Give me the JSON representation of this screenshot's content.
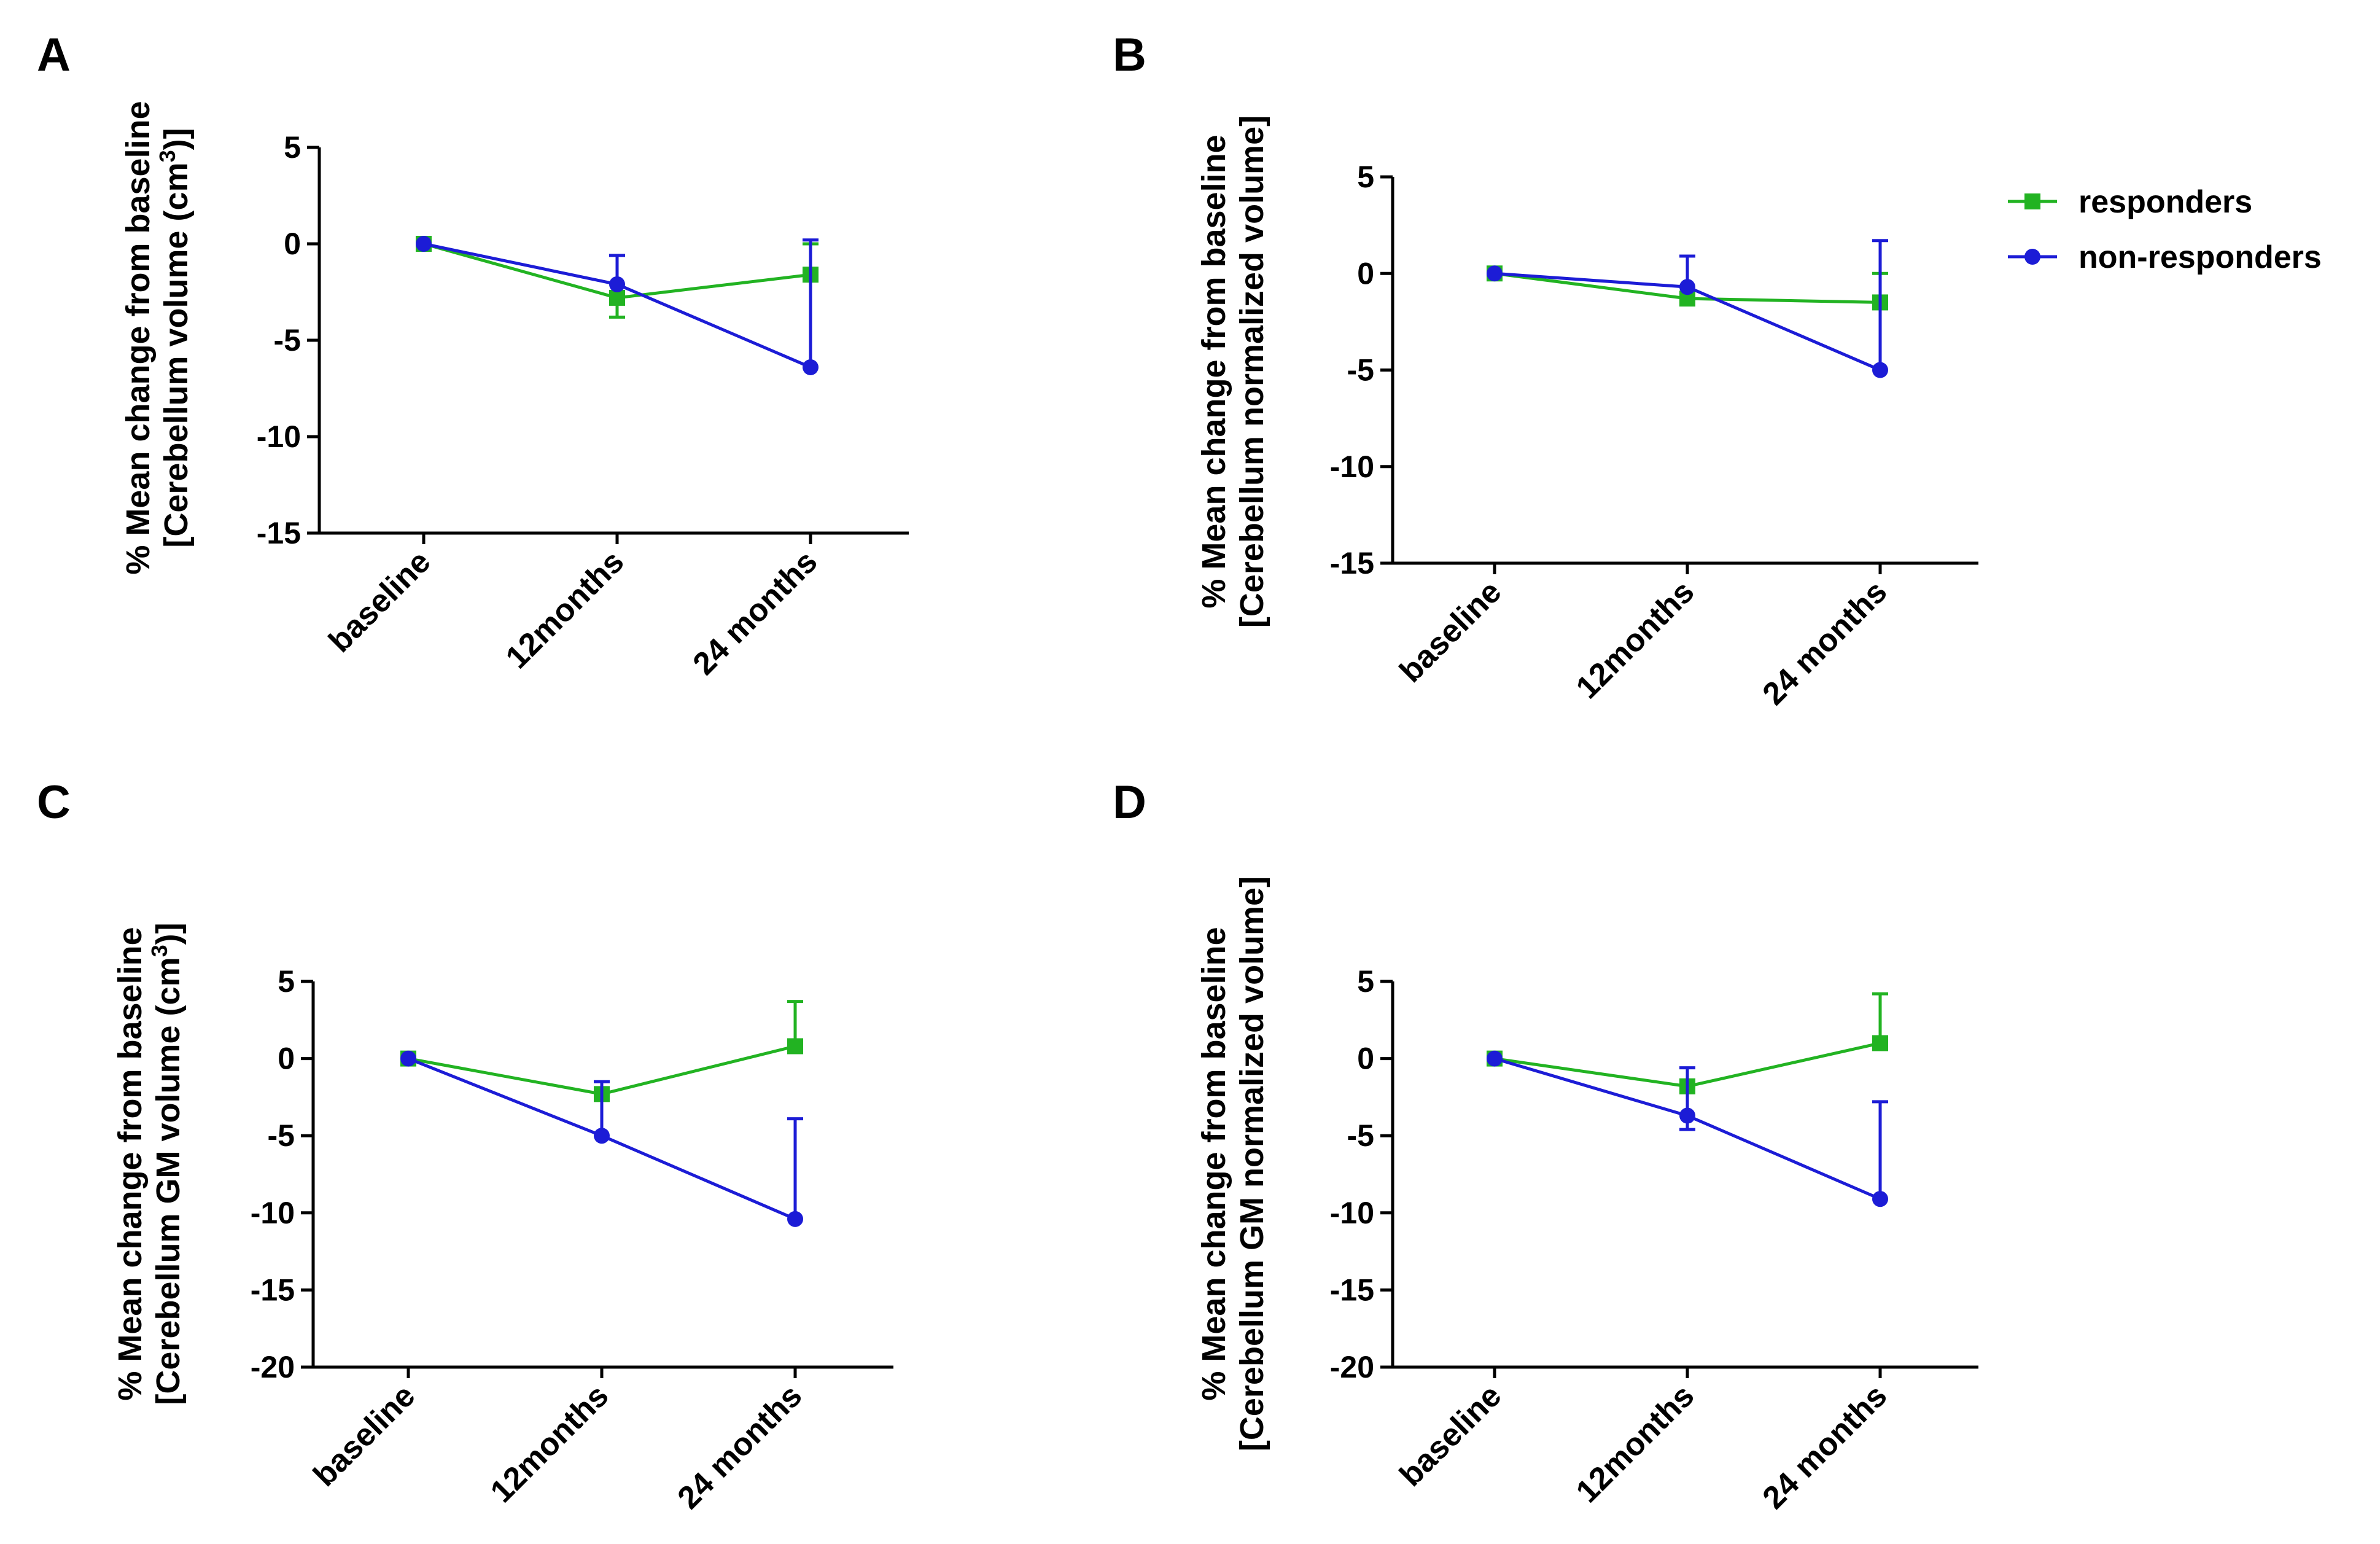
{
  "chart_data": [
    {
      "type": "line",
      "panel_label": "A",
      "ylabel_line1": "% Mean change from baseline",
      "ylabel_line2_pre": "[Cerebellum volume (cm",
      "ylabel_sup": "3",
      "ylabel_line2_post": ")]",
      "categories": [
        "baseline",
        "12months",
        "24 months"
      ],
      "ylim": [
        -15,
        5
      ],
      "yticks": [
        5,
        0,
        -5,
        -10,
        -15
      ],
      "ytick_labels": [
        "5",
        "0",
        "-5",
        "-10",
        "-15"
      ],
      "series": [
        {
          "name": "responders",
          "values": [
            0,
            -2.8,
            -1.6
          ],
          "error_minus": [
            0,
            1.0,
            0
          ],
          "error_plus": [
            0,
            0,
            1.6
          ]
        },
        {
          "name": "non-responders",
          "values": [
            0,
            -2.1,
            -6.4
          ],
          "error_minus": [
            0,
            0,
            0
          ],
          "error_plus": [
            0,
            1.5,
            6.6
          ]
        }
      ]
    },
    {
      "type": "line",
      "panel_label": "B",
      "ylabel_line1": "% Mean change from baseline",
      "ylabel_line2_pre": "[Cerebellum normalized volume]",
      "ylabel_sup": "",
      "ylabel_line2_post": "",
      "categories": [
        "baseline",
        "12months",
        "24 months"
      ],
      "ylim": [
        -15,
        5
      ],
      "yticks": [
        5,
        0,
        -5,
        -10,
        -15
      ],
      "ytick_labels": [
        "5",
        "0",
        "-5",
        "-10",
        "-15"
      ],
      "series": [
        {
          "name": "responders",
          "values": [
            0,
            -1.3,
            -1.5
          ],
          "error_minus": [
            0,
            0,
            0
          ],
          "error_plus": [
            0,
            0,
            1.5
          ]
        },
        {
          "name": "non-responders",
          "values": [
            0,
            -0.7,
            -5.0
          ],
          "error_minus": [
            0,
            0,
            0
          ],
          "error_plus": [
            0,
            1.6,
            6.7
          ]
        }
      ]
    },
    {
      "type": "line",
      "panel_label": "C",
      "ylabel_line1": "% Mean change from baseline",
      "ylabel_line2_pre": "[Cerebellum GM volume (cm",
      "ylabel_sup": "3",
      "ylabel_line2_post": ")]",
      "categories": [
        "baseline",
        "12months",
        "24 months"
      ],
      "ylim": [
        -20,
        5
      ],
      "yticks": [
        5,
        0,
        -5,
        -10,
        -15,
        -20
      ],
      "ytick_labels": [
        "5",
        "0",
        "-5",
        "-10",
        "-15",
        "-20"
      ],
      "series": [
        {
          "name": "responders",
          "values": [
            0,
            -2.3,
            0.8
          ],
          "error_minus": [
            0,
            0,
            0
          ],
          "error_plus": [
            0,
            0,
            2.9
          ]
        },
        {
          "name": "non-responders",
          "values": [
            0,
            -5.0,
            -10.4
          ],
          "error_minus": [
            0,
            0,
            0
          ],
          "error_plus": [
            0,
            3.5,
            6.5
          ]
        }
      ]
    },
    {
      "type": "line",
      "panel_label": "D",
      "ylabel_line1": "% Mean change from baseline",
      "ylabel_line2_pre": "[Cerebellum GM normalized volume]",
      "ylabel_sup": "",
      "ylabel_line2_post": "",
      "categories": [
        "baseline",
        "12months",
        "24 months"
      ],
      "ylim": [
        -20,
        5
      ],
      "yticks": [
        5,
        0,
        -5,
        -10,
        -15,
        -20
      ],
      "ytick_labels": [
        "5",
        "0",
        "-5",
        "-10",
        "-15",
        "-20"
      ],
      "series": [
        {
          "name": "responders",
          "values": [
            0,
            -1.8,
            1.0
          ],
          "error_minus": [
            0,
            0,
            0
          ],
          "error_plus": [
            0,
            0,
            3.2
          ]
        },
        {
          "name": "non-responders",
          "values": [
            0,
            -3.7,
            -9.1
          ],
          "error_minus": [
            0,
            0.9,
            0
          ],
          "error_plus": [
            0,
            3.1,
            6.3
          ]
        }
      ]
    }
  ],
  "legend": {
    "items": [
      {
        "label": "responders",
        "color": "#22b322",
        "marker": "square"
      },
      {
        "label": "non-responders",
        "color": "#1c1cd6",
        "marker": "circle"
      }
    ]
  },
  "colors": {
    "responders": "#22b322",
    "non_responders": "#1c1cd6",
    "axis": "#000000"
  }
}
